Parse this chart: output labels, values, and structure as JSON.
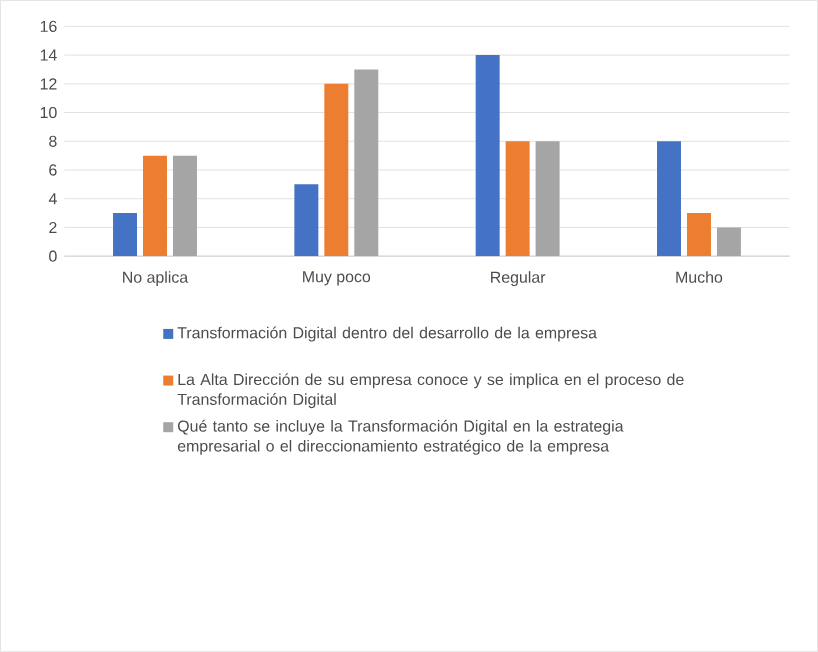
{
  "chart_data": {
    "type": "bar",
    "categories": [
      "No aplica",
      "Muy poco",
      "Regular",
      "Mucho"
    ],
    "series": [
      {
        "name": "Transformación Digital dentro del desarrollo de la empresa",
        "color": "#4472c4",
        "values": [
          3,
          5,
          14,
          8
        ]
      },
      {
        "name": "La Alta Dirección de su empresa conoce y se implica en el proceso de Transformación Digital",
        "color": "#ed7d31",
        "values": [
          7,
          12,
          8,
          3
        ]
      },
      {
        "name": "Qué tanto se incluye la Transformación Digital en la estrategia empresarial o el direccionamiento estratégico de la empresa",
        "color": "#a5a5a5",
        "values": [
          7,
          13,
          8,
          2
        ]
      }
    ],
    "ylim": [
      0,
      16
    ],
    "yticks": [
      0,
      2,
      4,
      6,
      8,
      10,
      12,
      14,
      16
    ],
    "grid": "y",
    "legend": "bottom"
  }
}
